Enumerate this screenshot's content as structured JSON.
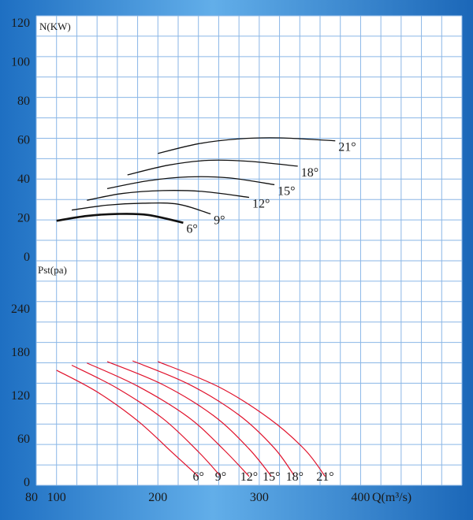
{
  "chart_data": [
    {
      "type": "line",
      "ylabel": "N(KW)",
      "yticks": [
        0,
        20,
        40,
        60,
        80,
        100,
        120
      ],
      "ylim": [
        0,
        120
      ],
      "xlim": [
        80,
        500
      ],
      "grid": true,
      "series": [
        {
          "name": "6°",
          "x": [
            100,
            130,
            160,
            190,
            225
          ],
          "y": [
            18.5,
            21,
            22,
            21.5,
            17.5
          ]
        },
        {
          "name": "9°",
          "x": [
            115,
            150,
            185,
            220,
            252
          ],
          "y": [
            24,
            26.5,
            27.5,
            27,
            22
          ]
        },
        {
          "name": "12°",
          "x": [
            130,
            165,
            205,
            245,
            290
          ],
          "y": [
            29,
            32.5,
            34,
            33.5,
            30.5
          ]
        },
        {
          "name": "15°",
          "x": [
            150,
            190,
            230,
            270,
            315
          ],
          "y": [
            35,
            39,
            41,
            40.5,
            37
          ]
        },
        {
          "name": "18°",
          "x": [
            170,
            210,
            250,
            290,
            338
          ],
          "y": [
            42,
            47,
            49.5,
            49,
            46.5
          ]
        },
        {
          "name": "21°",
          "x": [
            200,
            240,
            280,
            320,
            375
          ],
          "y": [
            53,
            58,
            60.5,
            61,
            59.5
          ]
        }
      ]
    },
    {
      "type": "line",
      "ylabel": "Pst(pa)",
      "xlabel": "Q(m³/s)",
      "xticks": [
        80,
        100,
        200,
        300,
        400
      ],
      "yticks": [
        0,
        60,
        120,
        180,
        240
      ],
      "ylim": [
        0,
        290
      ],
      "xlim": [
        80,
        500
      ],
      "grid": true,
      "series": [
        {
          "name": "6°",
          "x": [
            100,
            140,
            180,
            215,
            240
          ],
          "y": [
            155,
            125,
            85,
            40,
            8
          ]
        },
        {
          "name": "9°",
          "x": [
            115,
            160,
            205,
            240,
            262
          ],
          "y": [
            162,
            130,
            88,
            42,
            8
          ]
        },
        {
          "name": "12°",
          "x": [
            130,
            180,
            230,
            265,
            290
          ],
          "y": [
            165,
            133,
            90,
            45,
            8
          ]
        },
        {
          "name": "15°",
          "x": [
            150,
            205,
            255,
            290,
            312
          ],
          "y": [
            167,
            135,
            92,
            46,
            8
          ]
        },
        {
          "name": "18°",
          "x": [
            175,
            230,
            280,
            315,
            335
          ],
          "y": [
            168,
            136,
            93,
            47,
            8
          ]
        },
        {
          "name": "21°",
          "x": [
            200,
            260,
            310,
            345,
            365
          ],
          "y": [
            167,
            132,
            88,
            45,
            8
          ]
        }
      ]
    }
  ],
  "colors": {
    "panel": "#ffffff",
    "grid": "#8ab6e6",
    "bg_light": "#5aa6e6",
    "bg_dark": "#1d6ec0",
    "power_curve": "#111111",
    "pressure_curve": "#e0112b"
  }
}
